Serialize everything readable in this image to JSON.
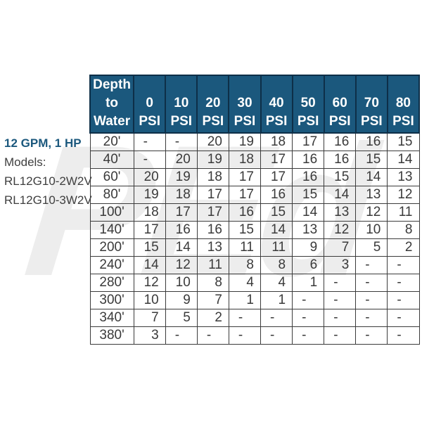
{
  "left_panel": {
    "spec": "12 GPM, 1 HP",
    "models_label": "Models:",
    "models": [
      "RL12G10-2W2V",
      "RL12G10-3W2V"
    ]
  },
  "watermark_text": "PEd",
  "colors": {
    "header_bg": "#1b587d",
    "header_divider": "#0e2f48",
    "accent_text": "#1b587d",
    "grid_line": "#3b3b3b",
    "cell_text": "#3a3a3a",
    "watermark": "#ededed"
  },
  "chart_data": {
    "type": "table",
    "corner_header": "Depth to Water",
    "corner_header_lines": [
      "Depth",
      "to",
      "Water"
    ],
    "psi_unit": "PSI",
    "psi_columns": [
      "0",
      "10",
      "20",
      "30",
      "40",
      "50",
      "60",
      "70",
      "80"
    ],
    "column_headers": [
      "0 PSI",
      "10 PSI",
      "20 PSI",
      "30 PSI",
      "40 PSI",
      "50 PSI",
      "60 PSI",
      "70 PSI",
      "80 PSI"
    ],
    "rows": [
      {
        "depth": "20'",
        "values": [
          "-",
          "-",
          "20",
          "19",
          "18",
          "17",
          "16",
          "16",
          "15"
        ]
      },
      {
        "depth": "40'",
        "values": [
          "-",
          "20",
          "19",
          "18",
          "17",
          "16",
          "16",
          "15",
          "14"
        ]
      },
      {
        "depth": "60'",
        "values": [
          "20",
          "19",
          "18",
          "17",
          "17",
          "16",
          "15",
          "14",
          "13"
        ]
      },
      {
        "depth": "80'",
        "values": [
          "19",
          "18",
          "17",
          "17",
          "16",
          "15",
          "14",
          "13",
          "12"
        ]
      },
      {
        "depth": "100'",
        "values": [
          "18",
          "17",
          "17",
          "16",
          "15",
          "14",
          "13",
          "12",
          "11"
        ]
      },
      {
        "depth": "140'",
        "values": [
          "17",
          "16",
          "16",
          "15",
          "14",
          "13",
          "12",
          "10",
          "8"
        ]
      },
      {
        "depth": "200'",
        "values": [
          "15",
          "14",
          "13",
          "11",
          "11",
          "9",
          "7",
          "5",
          "2"
        ]
      },
      {
        "depth": "240'",
        "values": [
          "14",
          "12",
          "11",
          "8",
          "8",
          "6",
          "3",
          "-",
          "-"
        ]
      },
      {
        "depth": "280'",
        "values": [
          "12",
          "10",
          "8",
          "4",
          "4",
          "1",
          "-",
          "-",
          "-"
        ]
      },
      {
        "depth": "300'",
        "values": [
          "10",
          "9",
          "7",
          "1",
          "1",
          "-",
          "-",
          "-",
          "-"
        ]
      },
      {
        "depth": "340'",
        "values": [
          "7",
          "5",
          "2",
          "-",
          "-",
          "-",
          "-",
          "-",
          "-"
        ]
      },
      {
        "depth": "380'",
        "values": [
          "3",
          "-",
          "-",
          "-",
          "-",
          "-",
          "-",
          "-",
          "-"
        ]
      }
    ]
  }
}
